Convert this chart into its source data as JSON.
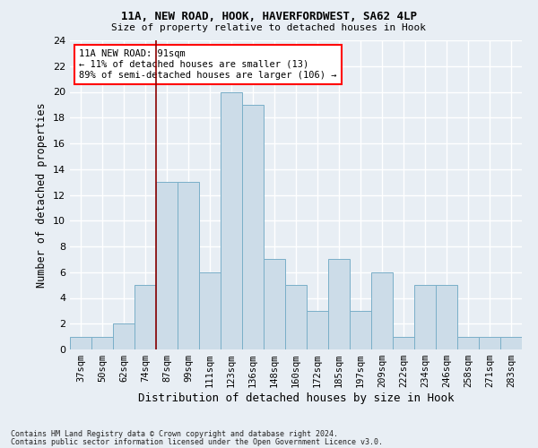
{
  "title1": "11A, NEW ROAD, HOOK, HAVERFORDWEST, SA62 4LP",
  "title2": "Size of property relative to detached houses in Hook",
  "xlabel": "Distribution of detached houses by size in Hook",
  "ylabel": "Number of detached properties",
  "categories": [
    "37sqm",
    "50sqm",
    "62sqm",
    "74sqm",
    "87sqm",
    "99sqm",
    "111sqm",
    "123sqm",
    "136sqm",
    "148sqm",
    "160sqm",
    "172sqm",
    "185sqm",
    "197sqm",
    "209sqm",
    "222sqm",
    "234sqm",
    "246sqm",
    "258sqm",
    "271sqm",
    "283sqm"
  ],
  "values": [
    1,
    1,
    2,
    5,
    13,
    13,
    6,
    20,
    19,
    7,
    5,
    3,
    7,
    3,
    6,
    1,
    5,
    5,
    1,
    1,
    1
  ],
  "bar_color": "#ccdce8",
  "bar_edge_color": "#7aafc8",
  "ylim": [
    0,
    24
  ],
  "yticks": [
    0,
    2,
    4,
    6,
    8,
    10,
    12,
    14,
    16,
    18,
    20,
    22,
    24
  ],
  "red_line_index": 3.5,
  "annotation_text": "11A NEW ROAD: 91sqm\n← 11% of detached houses are smaller (13)\n89% of semi-detached houses are larger (106) →",
  "annotation_box_color": "white",
  "annotation_box_edge": "red",
  "footer1": "Contains HM Land Registry data © Crown copyright and database right 2024.",
  "footer2": "Contains public sector information licensed under the Open Government Licence v3.0.",
  "background_color": "#e8eef4",
  "grid_color": "white"
}
